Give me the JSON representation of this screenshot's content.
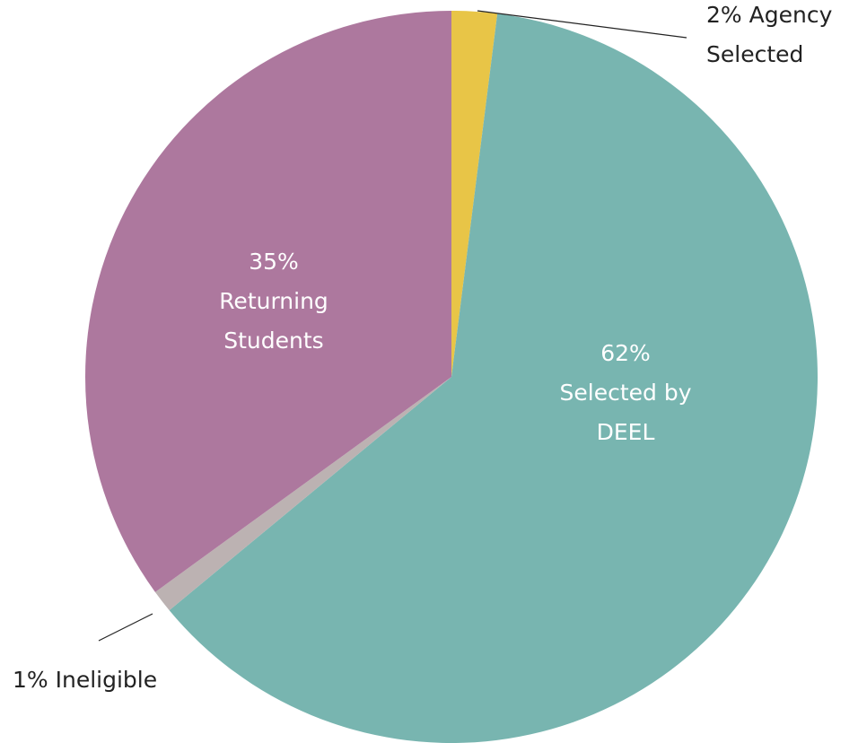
{
  "chart_data": {
    "type": "pie",
    "categories": [
      "Agency Selected",
      "Selected by DEEL",
      "Ineligible",
      "Returning Students"
    ],
    "values": [
      2,
      62,
      1,
      35
    ],
    "value_labels": [
      "2%",
      "62%",
      "1%",
      "35%"
    ],
    "colors": [
      "#e8c547",
      "#78b5b0",
      "#bcb2b2",
      "#ad789e"
    ]
  }
}
